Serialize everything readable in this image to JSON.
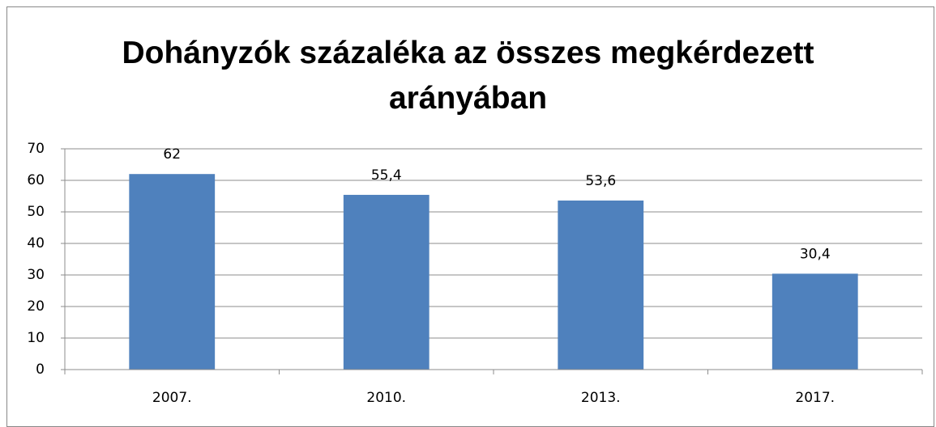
{
  "chart_data": {
    "type": "bar",
    "title": "Dohányzók százaléka az összes megkérdezett arányában",
    "categories": [
      "2007.",
      "2010.",
      "2013.",
      "2017."
    ],
    "values": [
      62,
      55.4,
      53.6,
      30.4
    ],
    "value_labels": [
      "62",
      "55,4",
      "53,6",
      "30,4"
    ],
    "color": "#4f81bd",
    "ylim": [
      0,
      70
    ],
    "yticks": [
      0,
      10,
      20,
      30,
      40,
      50,
      60,
      70
    ],
    "grid": true
  }
}
